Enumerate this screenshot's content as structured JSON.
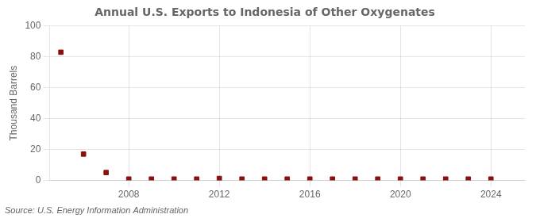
{
  "chart_data": {
    "type": "scatter",
    "title": "Annual U.S. Exports to Indonesia of Other Oxygenates",
    "ylabel": "Thousand Barrels",
    "annotation": "Source: U.S. Energy Information Administration",
    "x": [
      2005,
      2006,
      2007,
      2008,
      2009,
      2010,
      2011,
      2012,
      2013,
      2014,
      2015,
      2016,
      2017,
      2018,
      2019,
      2020,
      2021,
      2022,
      2023,
      2024
    ],
    "values": [
      83,
      17,
      5,
      0.8,
      0.8,
      0.8,
      0.8,
      1.2,
      0.8,
      0.8,
      0.8,
      0.8,
      0.8,
      0.8,
      0.8,
      0.8,
      0.8,
      0.8,
      0.8,
      0.8
    ],
    "color": "#8b1010",
    "marker": "square",
    "xlim": [
      2004.5,
      2025.5
    ],
    "xticks": [
      2008,
      2012,
      2016,
      2020,
      2024
    ],
    "ylim": [
      0,
      100
    ],
    "yticks": [
      0,
      20,
      40,
      60,
      80,
      100
    ],
    "grid": true
  }
}
